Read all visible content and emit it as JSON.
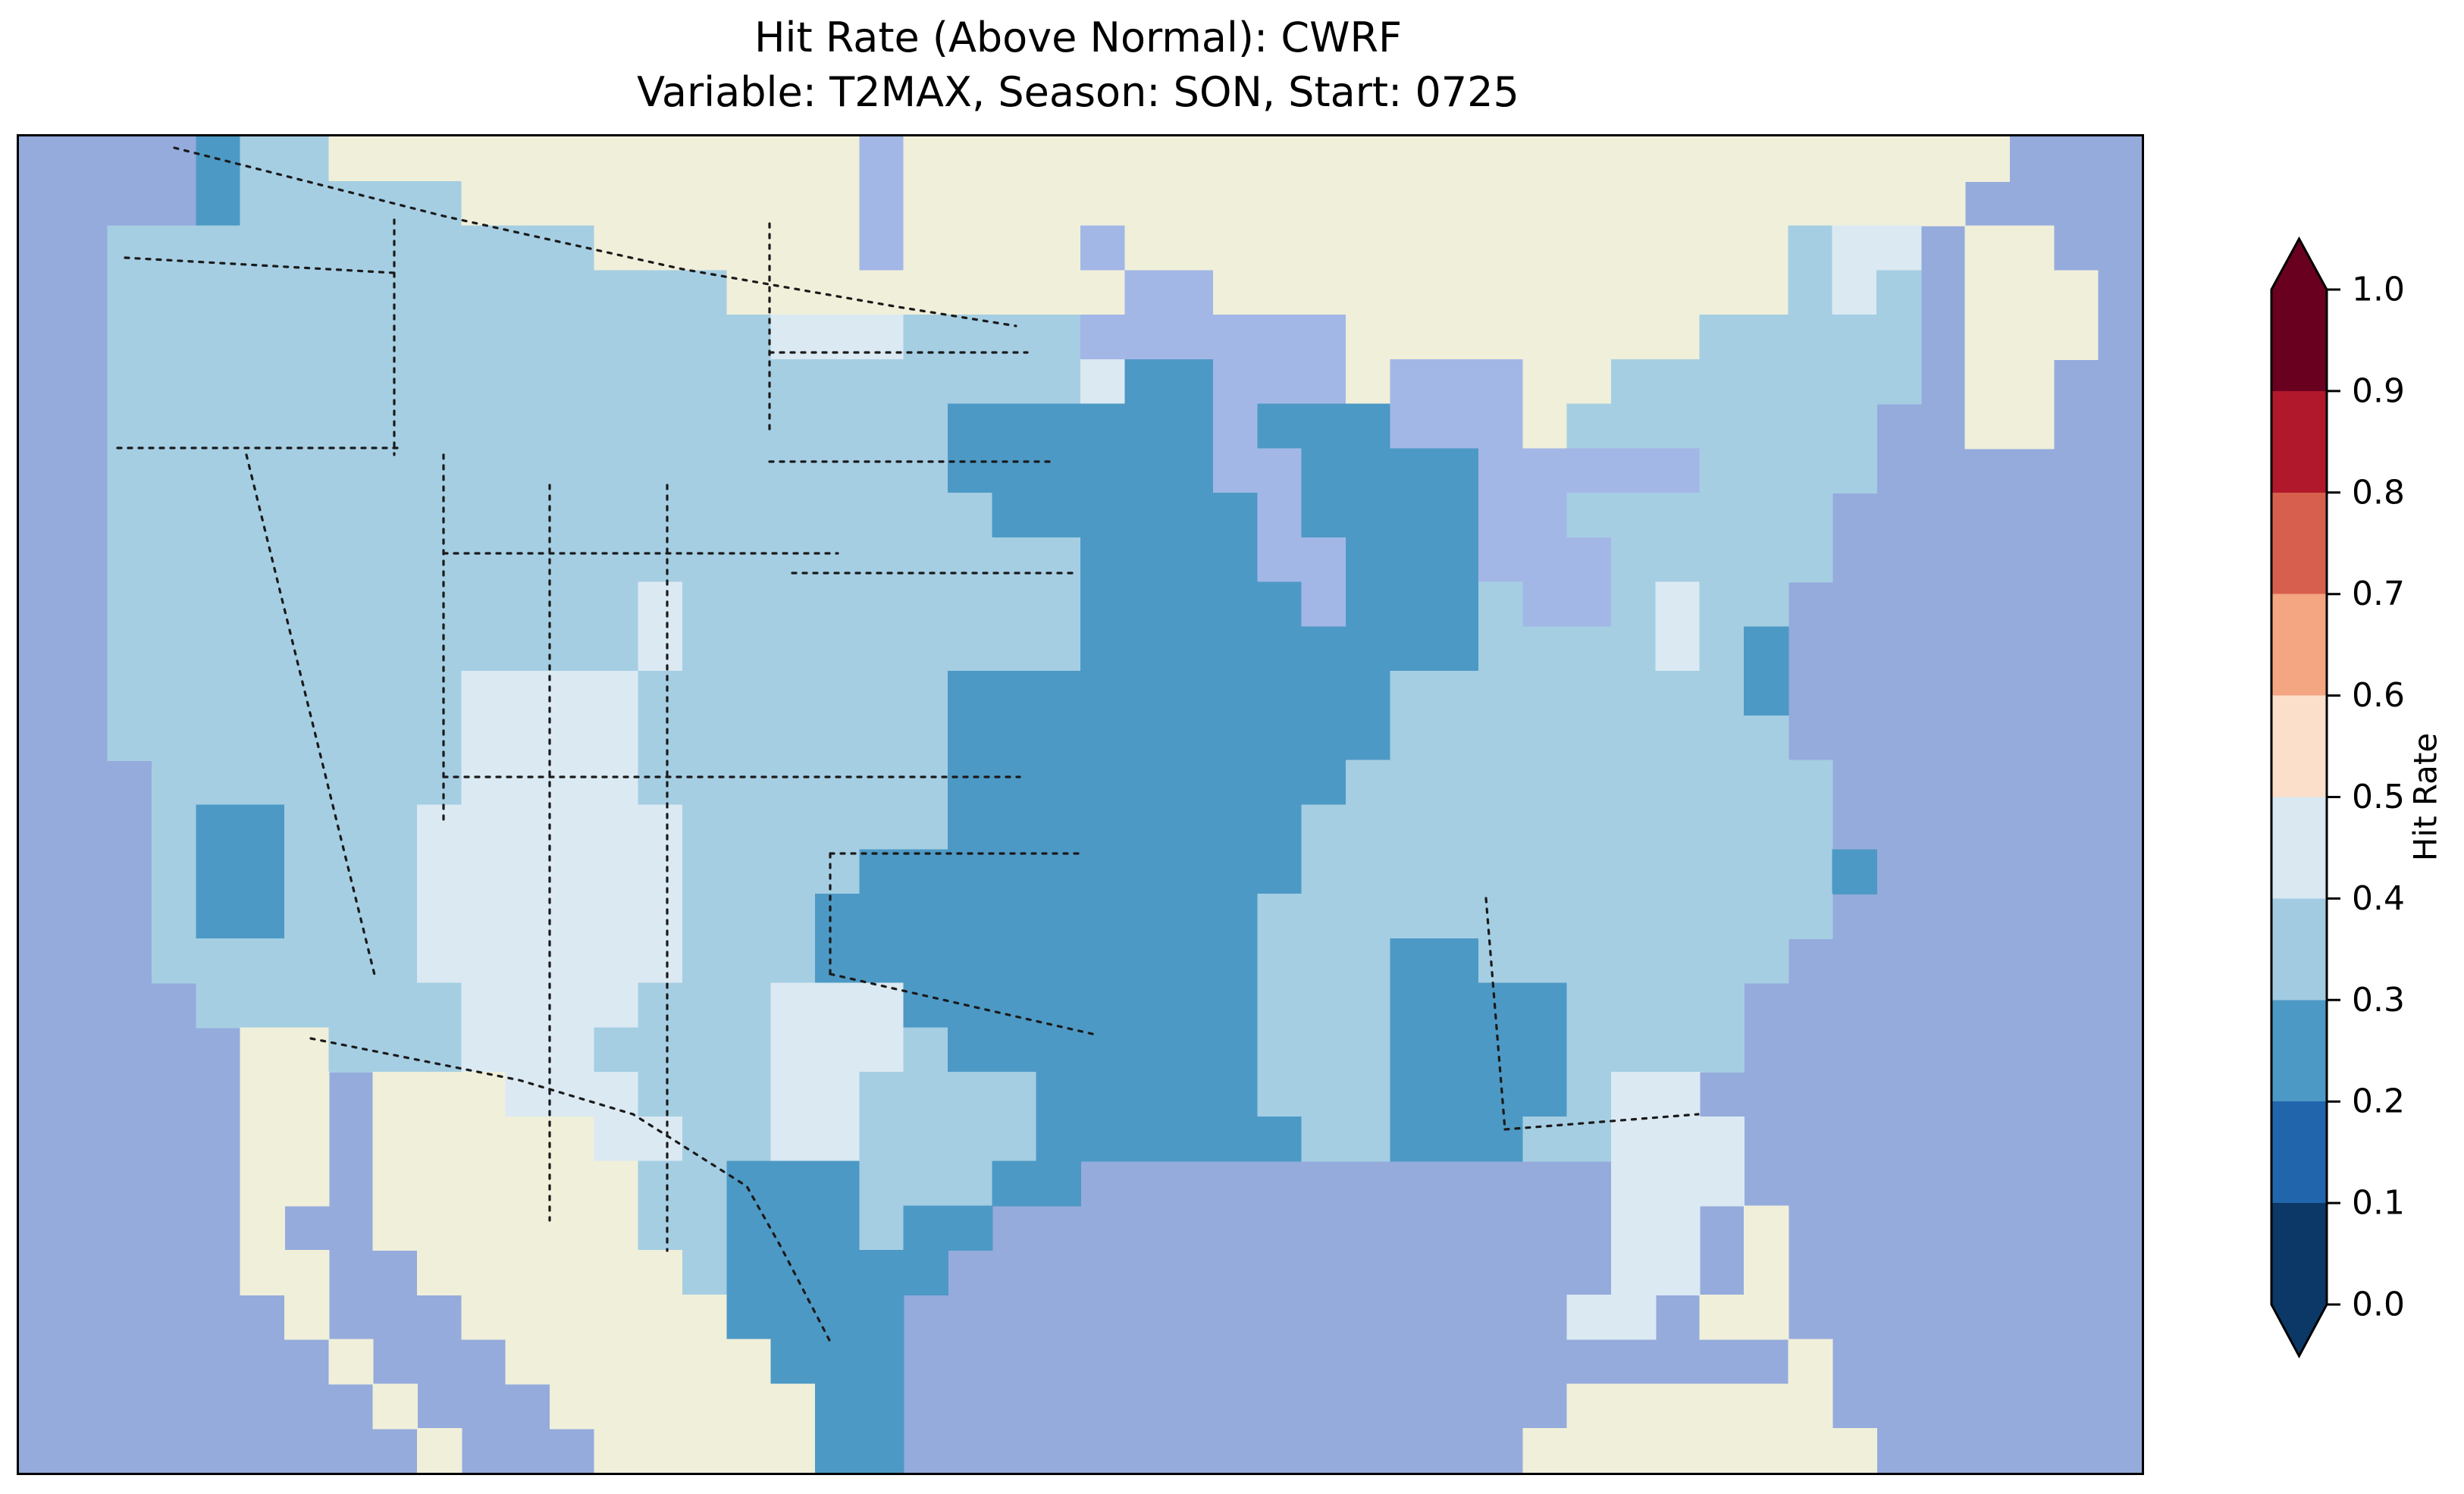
{
  "title": {
    "line1": "Hit Rate (Above Normal): CWRF",
    "line2": "Variable: T2MAX, Season: SON, Start: 0725"
  },
  "colorbar": {
    "label": "Hit Rate",
    "ticks": [
      "1.0",
      "0.9",
      "0.8",
      "0.7",
      "0.6",
      "0.5",
      "0.4",
      "0.3",
      "0.2",
      "0.1",
      "0.0"
    ],
    "bin_colors_top_to_bottom": [
      "#69001f",
      "#b2182b",
      "#d6604d",
      "#f4a582",
      "#fbdfca",
      "#d9e8f1",
      "#a2cbe2",
      "#4d99c5",
      "#2166ac",
      "#0b3866"
    ],
    "extend_arrows": "both",
    "outline_color": "#000000"
  },
  "chart_data": {
    "type": "heatmap",
    "subtype": "gridded-hit-rate-choropleth-map",
    "title": "Hit Rate (Above Normal): CWRF",
    "subtitle": "Variable: T2MAX, Season: SON, Start: 0725",
    "region": "Contiguous United States with surrounding Canada, Mexico, Cuba/Bahamas, Pacific, Atlantic and Gulf of Mexico",
    "model": "CWRF",
    "variable": "T2MAX",
    "season": "SON",
    "start": "0725",
    "colorbar_label": "Hit Rate",
    "colorbar_range": [
      0.0,
      1.0
    ],
    "colorbar_bins": [
      {
        "range": "0.0-0.1",
        "color": "#0b3866"
      },
      {
        "range": "0.1-0.2",
        "color": "#2166ac"
      },
      {
        "range": "0.2-0.3",
        "color": "#4d99c5"
      },
      {
        "range": "0.3-0.4",
        "color": "#a2cbe2"
      },
      {
        "range": "0.4-0.5",
        "color": "#d9e8f1"
      },
      {
        "range": "0.5-0.6",
        "color": "#fbdfca"
      },
      {
        "range": "0.6-0.7",
        "color": "#f4a582"
      },
      {
        "range": "0.7-0.8",
        "color": "#d6604d"
      },
      {
        "range": "0.8-0.9",
        "color": "#b2182b"
      },
      {
        "range": "0.9-1.0",
        "color": "#69001f"
      }
    ],
    "bins_present_on_map": [
      "0.2-0.3",
      "0.3-0.4",
      "0.4-0.5"
    ],
    "map_palette": {
      ".": "#95abdc",
      "L": "#f0efda",
      "k": "#a3b7e6",
      "2": "#4d99c5",
      "3": "#a5cee3",
      "4": "#dbe9f2"
    },
    "cell_legend": {
      ".": "ocean",
      "L": "non-US land (Canada / Mexico / Cuba / Bahamas)",
      "k": "lake / inland water (Great Lakes etc.)",
      "2": "hit rate 0.2-0.3",
      "3": "hit rate 0.3-0.4",
      "4": "hit rate 0.4-0.5"
    },
    "grid_cols": 48,
    "grid_rows": 30,
    "grid": [
      "....233LLLLLLLLLLLLkLLLLLLLLLLLLLLLLLLLLLLLLL...",
      "....233333LLLLLLLLLkLLLLLLLLLLLLLLLLLLLLLLLL....",
      "..33333333333LLLLLLkLLLLkLLLLLLLLLLLLLLL344.LL..",
      "..33333333333333LLLLLLLLLkkLLLLLLLLLLLLL343.LLL.",
      "..3333333333333334443333kkkkkkLLLLLLLL33333.LLL.",
      "..3333333333333333333333422kkkLkkkLL3333333.LL..",
      "..3333333333333333333222222k222kkkL3333333..LL..",
      "..3333333333333333333222222kk2222kkkkk3333......",
      "..33333333333333333333222222k2222kk333333.......",
      "..33333333333333333333332222kk222kkk33333.......",
      "..333333333333433333333322222k2223kk3433........",
      "..33333333333343333333332222222223333432........",
      "..33333333444433333332222222222333333332........",
      "..33333333444433333332222222222333333333........",
      "...33333334444333333322222222233333333333.......",
      "...32233344444433333322222222333333333333.......",
      "...322333444444333322222222223333333333332......",
      "...32233344444433322222222223333333333333.......",
      "...3333334444443332222222222333223333333........",
      "....33333344443334442222222233322223333.........",
      ".....LL33344433334443222222233322223333.........",
      ".....LL.LLL444333443333222223332222344..........",
      ".....LL.LLLLL44334433332222223322233444.........",
      ".....LL.LLLLLL3322233322............444.........",
      ".....L..LLLLLL33222322..............44.L........",
      ".....LL..LLLLLL322222...............44.L........",
      "......L...LLLLLL2222...............44.LL........",
      ".......L...LLLLLL222....................L.......",
      "........L...LLLLLL22...............LLLLLL.......",
      ".........L...LLLLL22..............LLLLLLLL......"
    ],
    "legend_position": "right colorbar",
    "grid_lines": "dotted state borders, dashed national borders, black coastlines"
  }
}
